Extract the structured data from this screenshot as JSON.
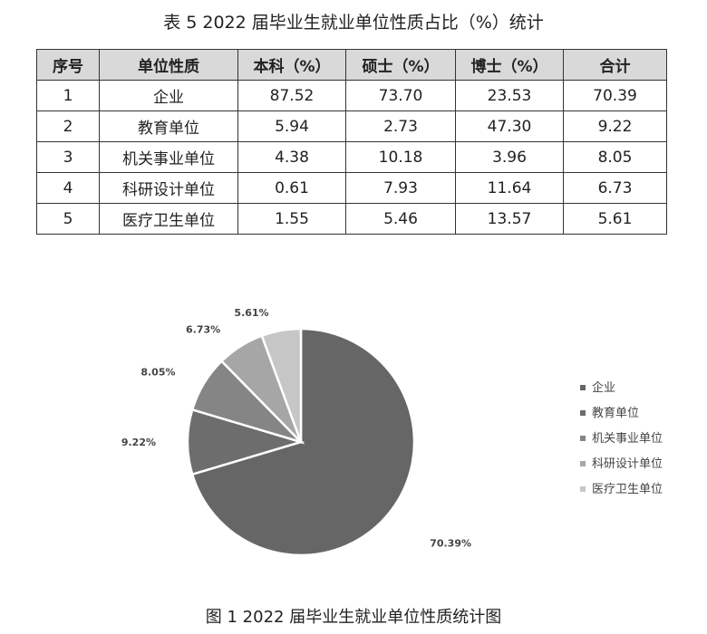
{
  "table": {
    "title": "表 5   2022 届毕业生就业单位性质占比（%）统计",
    "headers": [
      "序号",
      "单位性质",
      "本科（%）",
      "硕士（%）",
      "博士（%）",
      "合计"
    ],
    "rows": [
      [
        "1",
        "企业",
        "87.52",
        "73.70",
        "23.53",
        "70.39"
      ],
      [
        "2",
        "教育单位",
        "5.94",
        "2.73",
        "47.30",
        "9.22"
      ],
      [
        "3",
        "机关事业单位",
        "4.38",
        "10.18",
        "3.96",
        "8.05"
      ],
      [
        "4",
        "科研设计单位",
        "0.61",
        "7.93",
        "11.64",
        "6.73"
      ],
      [
        "5",
        "医疗卫生单位",
        "1.55",
        "5.46",
        "13.57",
        "5.61"
      ]
    ]
  },
  "chart_data": {
    "type": "pie",
    "title": "图 1   2022 届毕业生就业单位性质统计图",
    "categories": [
      "企业",
      "教育单位",
      "机关事业单位",
      "科研设计单位",
      "医疗卫生单位"
    ],
    "values": [
      70.39,
      9.22,
      8.05,
      6.73,
      5.61
    ],
    "data_labels": [
      "70.39%",
      "9.22%",
      "8.05%",
      "6.73%",
      "5.61%"
    ],
    "colors": [
      "#666666",
      "#6d6d6d",
      "#858585",
      "#a6a6a6",
      "#c6c6c6"
    ],
    "legend_position": "right",
    "start": "12 o'clock, clockwise"
  }
}
